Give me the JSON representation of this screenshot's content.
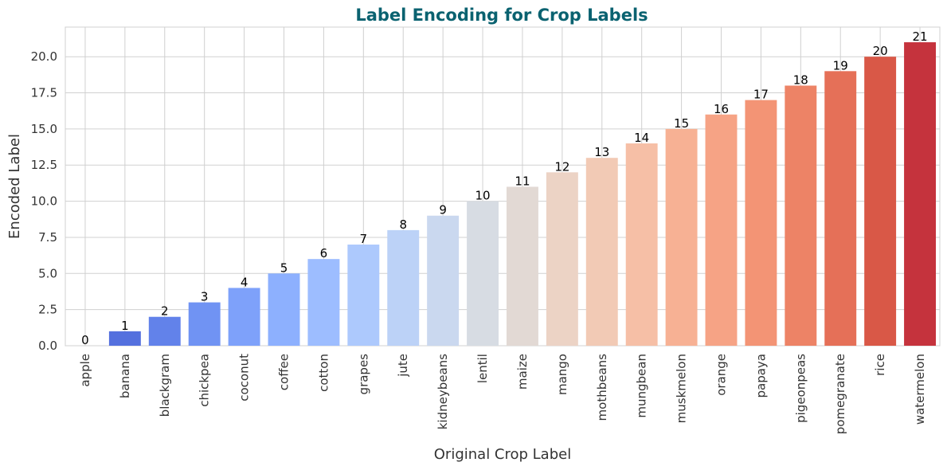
{
  "chart_data": {
    "type": "bar",
    "title": "Label Encoding for Crop Labels",
    "xlabel": "Original Crop Label",
    "ylabel": "Encoded Label",
    "categories": [
      "apple",
      "banana",
      "blackgram",
      "chickpea",
      "coconut",
      "coffee",
      "cotton",
      "grapes",
      "jute",
      "kidneybeans",
      "lentil",
      "maize",
      "mango",
      "mothbeans",
      "mungbean",
      "muskmelon",
      "orange",
      "papaya",
      "pigeonpeas",
      "pomegranate",
      "rice",
      "watermelon"
    ],
    "values": [
      0,
      1,
      2,
      3,
      4,
      5,
      6,
      7,
      8,
      9,
      10,
      11,
      12,
      13,
      14,
      15,
      16,
      17,
      18,
      19,
      20,
      21
    ],
    "data_labels": [
      "0",
      "1",
      "2",
      "3",
      "4",
      "5",
      "6",
      "7",
      "8",
      "9",
      "10",
      "11",
      "12",
      "13",
      "14",
      "15",
      "16",
      "17",
      "18",
      "19",
      "20",
      "21"
    ],
    "y_ticks": [
      0,
      2.5,
      5,
      7.5,
      10,
      12.5,
      15,
      17.5,
      20
    ],
    "y_tick_labels": [
      "0.0",
      "2.5",
      "5.0",
      "7.5",
      "10.0",
      "12.5",
      "15.0",
      "17.5",
      "20.0"
    ],
    "ylim": [
      0,
      22.05
    ],
    "grid": true,
    "colormap": "coolwarm",
    "colors": [
      "#3b4cc0",
      "#5470de",
      "#6282ea",
      "#7093f3",
      "#7ea1fa",
      "#8db0fe",
      "#9dbdff",
      "#adc9fd",
      "#bcd2f7",
      "#cad8ef",
      "#d7dce3",
      "#e2d9d4",
      "#ecd3c5",
      "#f2cab5",
      "#f6bfa6",
      "#f7b194",
      "#f6a385",
      "#f39475",
      "#ed8366",
      "#e57058",
      "#d95847",
      "#c5333d"
    ],
    "title_color": "#0a6270"
  }
}
